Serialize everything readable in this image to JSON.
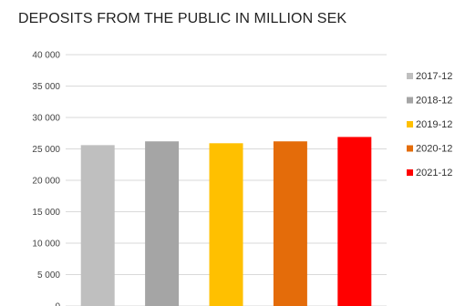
{
  "chart_data": {
    "type": "bar",
    "title": "DEPOSITS FROM THE PUBLIC IN MILLION SEK",
    "xlabel": "",
    "ylabel": "",
    "ylim": [
      0,
      40000
    ],
    "yticks": [
      0,
      5000,
      10000,
      15000,
      20000,
      25000,
      30000,
      35000,
      40000
    ],
    "ytick_labels": [
      "0",
      "5 000",
      "10 000",
      "15 000",
      "20 000",
      "25 000",
      "30 000",
      "35 000",
      "40 000"
    ],
    "categories": [
      "2017-12",
      "2018-12",
      "2019-12",
      "2020-12",
      "2021-12"
    ],
    "values": [
      25600,
      26200,
      25900,
      26200,
      26900
    ],
    "colors": [
      "#bfbfbf",
      "#a5a5a5",
      "#ffc000",
      "#e46c0a",
      "#ff0000"
    ],
    "grid": true,
    "legend_position": "right"
  }
}
